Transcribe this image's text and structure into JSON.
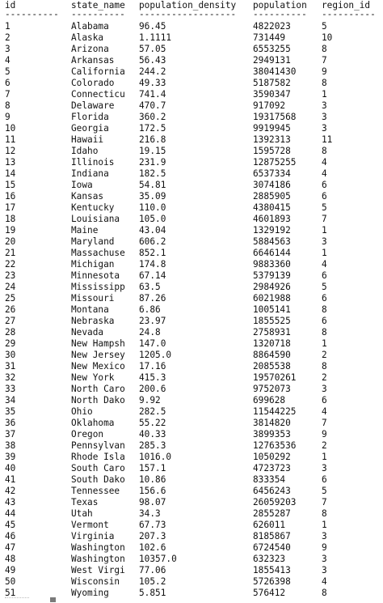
{
  "headers": {
    "id": "id",
    "state_name": "state_name",
    "population_density": "population_density",
    "population": "population",
    "region_id": "region_id"
  },
  "separators": {
    "id": "----------",
    "state_name": "----------",
    "population_density": "------------------",
    "population": "----------",
    "region_id": "----------"
  },
  "rows": [
    [
      "1",
      "Alabama",
      "96.45",
      "4822023",
      "5"
    ],
    [
      "2",
      "Alaska",
      "1.1111",
      "731449",
      "10"
    ],
    [
      "3",
      "Arizona",
      "57.05",
      "6553255",
      "8"
    ],
    [
      "4",
      "Arkansas",
      "56.43",
      "2949131",
      "7"
    ],
    [
      "5",
      "California",
      "244.2",
      "38041430",
      "9"
    ],
    [
      "6",
      "Colorado",
      "49.33",
      "5187582",
      "8"
    ],
    [
      "7",
      "Connecticu",
      "741.4",
      "3590347",
      "1"
    ],
    [
      "8",
      "Delaware",
      "470.7",
      "917092",
      "3"
    ],
    [
      "9",
      "Florida",
      "360.2",
      "19317568",
      "3"
    ],
    [
      "10",
      "Georgia",
      "172.5",
      "9919945",
      "3"
    ],
    [
      "11",
      "Hawaii",
      "216.8",
      "1392313",
      "11"
    ],
    [
      "12",
      "Idaho",
      "19.15",
      "1595728",
      "8"
    ],
    [
      "13",
      "Illinois",
      "231.9",
      "12875255",
      "4"
    ],
    [
      "14",
      "Indiana",
      "182.5",
      "6537334",
      "4"
    ],
    [
      "15",
      "Iowa",
      "54.81",
      "3074186",
      "6"
    ],
    [
      "16",
      "Kansas",
      "35.09",
      "2885905",
      "6"
    ],
    [
      "17",
      "Kentucky",
      "110.0",
      "4380415",
      "5"
    ],
    [
      "18",
      "Louisiana",
      "105.0",
      "4601893",
      "7"
    ],
    [
      "19",
      "Maine",
      "43.04",
      "1329192",
      "1"
    ],
    [
      "20",
      "Maryland",
      "606.2",
      "5884563",
      "3"
    ],
    [
      "21",
      "Massachuse",
      "852.1",
      "6646144",
      "1"
    ],
    [
      "22",
      "Michigan",
      "174.8",
      "9883360",
      "4"
    ],
    [
      "23",
      "Minnesota",
      "67.14",
      "5379139",
      "6"
    ],
    [
      "24",
      "Mississipp",
      "63.5",
      "2984926",
      "5"
    ],
    [
      "25",
      "Missouri",
      "87.26",
      "6021988",
      "6"
    ],
    [
      "26",
      "Montana",
      "6.86",
      "1005141",
      "8"
    ],
    [
      "27",
      "Nebraska",
      "23.97",
      "1855525",
      "6"
    ],
    [
      "28",
      "Nevada",
      "24.8",
      "2758931",
      "8"
    ],
    [
      "29",
      "New Hampsh",
      "147.0",
      "1320718",
      "1"
    ],
    [
      "30",
      "New Jersey",
      "1205.0",
      "8864590",
      "2"
    ],
    [
      "31",
      "New Mexico",
      "17.16",
      "2085538",
      "8"
    ],
    [
      "32",
      "New York",
      "415.3",
      "19570261",
      "2"
    ],
    [
      "33",
      "North Caro",
      "200.6",
      "9752073",
      "3"
    ],
    [
      "34",
      "North Dako",
      "9.92",
      "699628",
      "6"
    ],
    [
      "35",
      "Ohio",
      "282.5",
      "11544225",
      "4"
    ],
    [
      "36",
      "Oklahoma",
      "55.22",
      "3814820",
      "7"
    ],
    [
      "37",
      "Oregon",
      "40.33",
      "3899353",
      "9"
    ],
    [
      "38",
      "Pennsylvan",
      "285.3",
      "12763536",
      "2"
    ],
    [
      "39",
      "Rhode Isla",
      "1016.0",
      "1050292",
      "1"
    ],
    [
      "40",
      "South Caro",
      "157.1",
      "4723723",
      "3"
    ],
    [
      "41",
      "South Dako",
      "10.86",
      "833354",
      "6"
    ],
    [
      "42",
      "Tennessee",
      "156.6",
      "6456243",
      "5"
    ],
    [
      "43",
      "Texas",
      "98.07",
      "26059203",
      "7"
    ],
    [
      "44",
      "Utah",
      "34.3",
      "2855287",
      "8"
    ],
    [
      "45",
      "Vermont",
      "67.73",
      "626011",
      "1"
    ],
    [
      "46",
      "Virginia",
      "207.3",
      "8185867",
      "3"
    ],
    [
      "47",
      "Washington",
      "102.6",
      "6724540",
      "9"
    ],
    [
      "48",
      "Washington",
      "10357.0",
      "632323",
      "3"
    ],
    [
      "49",
      "West Virgi",
      "77.06",
      "1855413",
      "3"
    ],
    [
      "50",
      "Wisconsin",
      "105.2",
      "5726398",
      "4"
    ],
    [
      "51",
      "Wyoming",
      "5.851",
      "576412",
      "8"
    ]
  ]
}
